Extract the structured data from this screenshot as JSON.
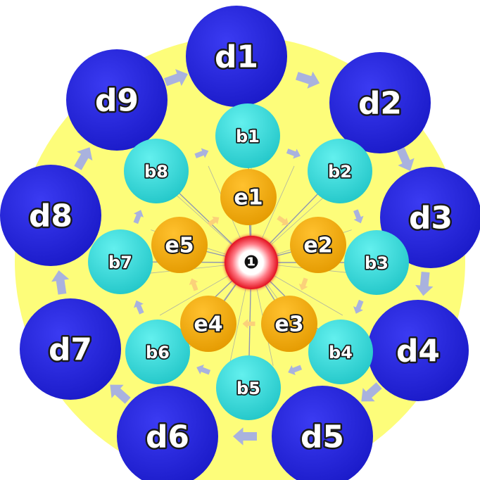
{
  "center": {
    "label": "❶"
  },
  "outer_ring": [
    {
      "label": "d1"
    },
    {
      "label": "d2"
    },
    {
      "label": "d3"
    },
    {
      "label": "d4"
    },
    {
      "label": "d5"
    },
    {
      "label": "d6"
    },
    {
      "label": "d7"
    },
    {
      "label": "d8"
    },
    {
      "label": "d9"
    }
  ],
  "middle_ring": [
    {
      "label": "b1"
    },
    {
      "label": "b2"
    },
    {
      "label": "b3"
    },
    {
      "label": "b4"
    },
    {
      "label": "b5"
    },
    {
      "label": "b6"
    },
    {
      "label": "b7"
    },
    {
      "label": "b8"
    }
  ],
  "inner_ring": [
    {
      "label": "e1"
    },
    {
      "label": "e2"
    },
    {
      "label": "e3"
    },
    {
      "label": "e4"
    },
    {
      "label": "e5"
    }
  ],
  "colors": {
    "background_disc": "#fdfd7a",
    "outer_node": "#2020dd",
    "middle_node": "#33d6d6",
    "inner_node": "#f0ab0a",
    "center_ring": "#e8202a",
    "spokes": "#8e96b2",
    "outer_arrows": "#a9b2de",
    "middle_arrows": "#a9b2de",
    "inner_arrows": "#fbd17a"
  }
}
